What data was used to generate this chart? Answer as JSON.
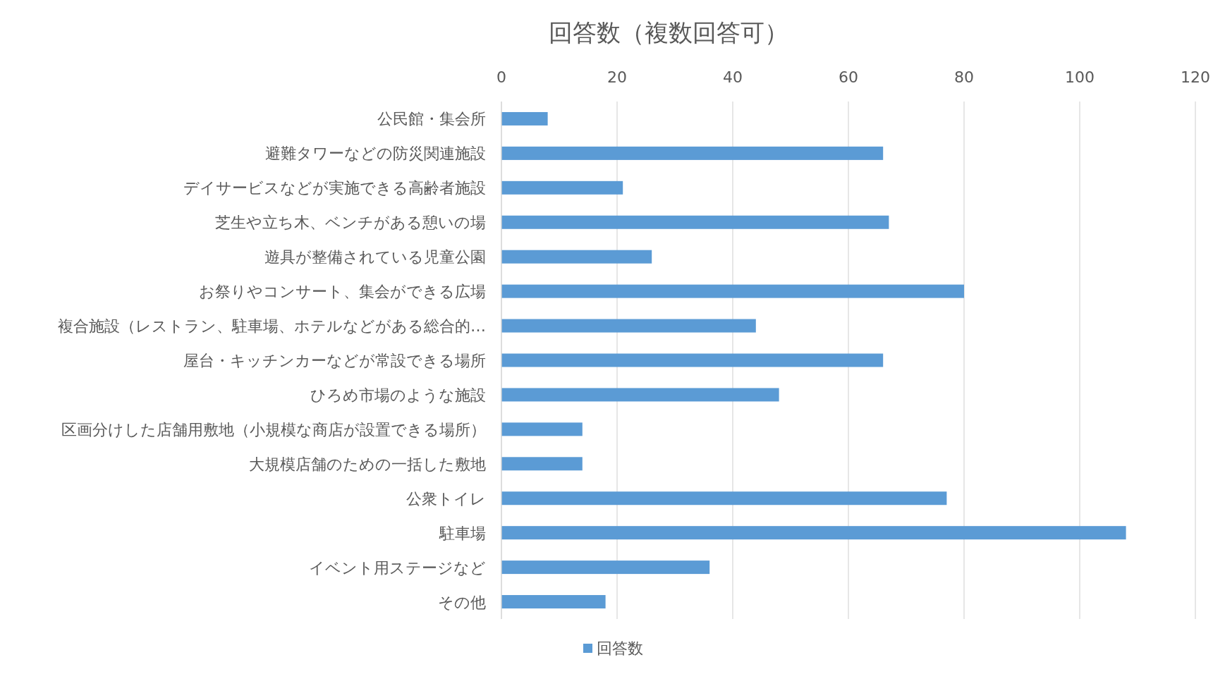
{
  "chart_data": {
    "type": "bar",
    "orientation": "horizontal",
    "title": "回答数（複数回答可）",
    "categories": [
      "公民館・集会所",
      "避難タワーなどの防災関連施設",
      "デイサービスなどが実施できる高齢者施設",
      "芝生や立ち木、ベンチがある憩いの場",
      "遊具が整備されている児童公園",
      "お祭りやコンサート、集会ができる広場",
      "複合施設（レストラン、駐車場、ホテルなどがある総合的…",
      "屋台・キッチンカーなどが常設できる場所",
      "ひろめ市場のような施設",
      "区画分けした店舗用敷地（小規模な商店が設置できる場所）",
      "大規模店舗のための一括した敷地",
      "公衆トイレ",
      "駐車場",
      "イベント用ステージなど",
      "その他"
    ],
    "series": [
      {
        "name": "回答数",
        "color": "#5b9bd5",
        "values": [
          8,
          66,
          21,
          67,
          26,
          80,
          44,
          66,
          48,
          14,
          14,
          77,
          108,
          36,
          18
        ]
      }
    ],
    "xlim": [
      0,
      120
    ],
    "xticks": [
      0,
      20,
      40,
      60,
      80,
      100,
      120
    ],
    "grid": "x",
    "legend": "bottom"
  }
}
